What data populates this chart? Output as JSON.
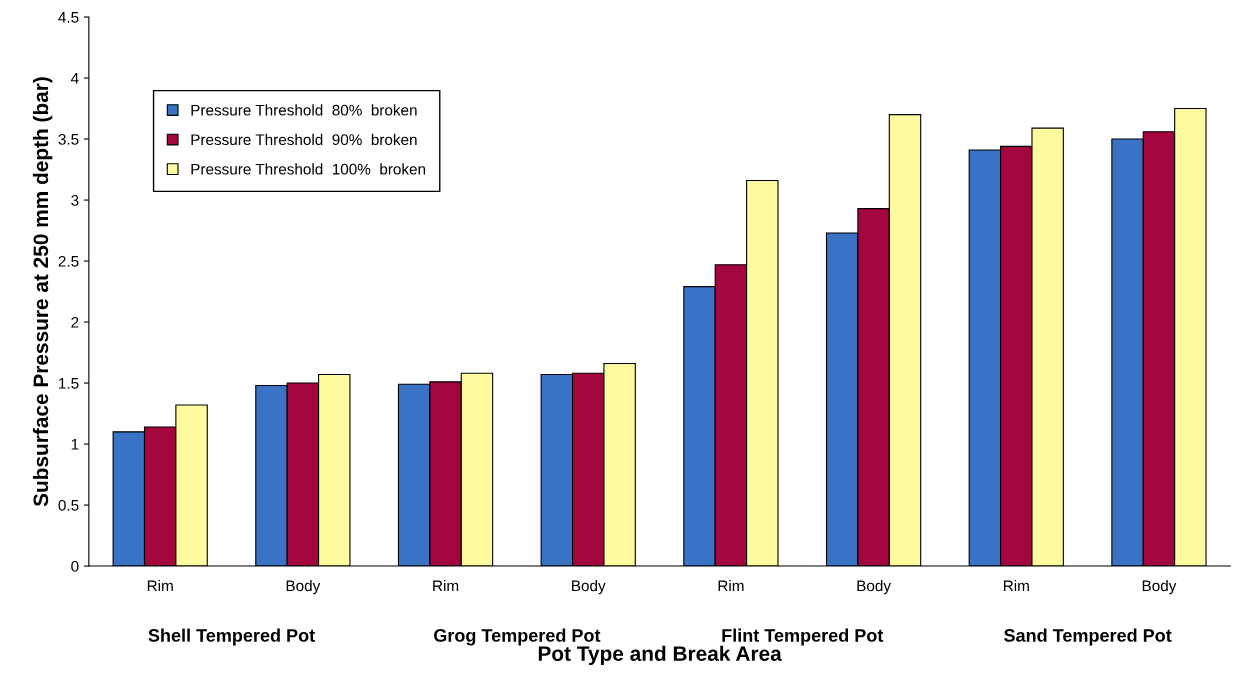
{
  "chart_data": {
    "type": "bar",
    "xlabel": "Pot Type and Break Area",
    "ylabel": "Subsurface Pressure at 250 mm depth (bar)",
    "categories": [
      "Rim",
      "Body",
      "Rim",
      "Body",
      "Rim",
      "Body",
      "Rim",
      "Body"
    ],
    "annotations": [
      "Shell Tempered Pot",
      "Grog Tempered Pot",
      "Flint Tempered Pot",
      "Sand Tempered Pot"
    ],
    "series": [
      {
        "name": "Pressure Threshold  80%  broken",
        "color": "#3a73c6",
        "values": [
          1.1,
          1.48,
          1.49,
          1.57,
          2.29,
          2.73,
          3.41,
          3.5
        ]
      },
      {
        "name": "Pressure Threshold  90%  broken",
        "color": "#a3063f",
        "values": [
          1.14,
          1.5,
          1.51,
          1.58,
          2.47,
          2.93,
          3.44,
          3.56
        ]
      },
      {
        "name": "Pressure Threshold  100%  broken",
        "color": "#fdfb9e",
        "values": [
          1.32,
          1.57,
          1.58,
          1.66,
          3.16,
          3.7,
          3.59,
          3.75
        ]
      }
    ],
    "ylim": [
      0,
      4.5
    ],
    "yticks": [
      0,
      0.5,
      1,
      1.5,
      2,
      2.5,
      3,
      3.5,
      4,
      4.5
    ],
    "grid": false,
    "legend": "top left"
  }
}
